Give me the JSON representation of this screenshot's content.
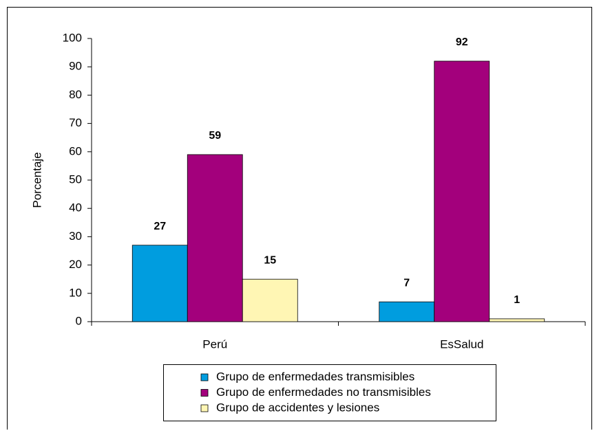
{
  "chart_data": {
    "type": "bar",
    "ylabel": "Porcentaje",
    "categories": [
      "Perú",
      "EsSalud"
    ],
    "series": [
      {
        "name": "Grupo de enfermedades transmisibles",
        "color": "#009ddf",
        "values": [
          27,
          7
        ]
      },
      {
        "name": "Grupo de enfermedades no transmisibles",
        "color": "#a3007c",
        "values": [
          59,
          92
        ]
      },
      {
        "name": "Grupo de accidentes y lesiones",
        "color": "#fff6b4",
        "values": [
          15,
          1
        ]
      }
    ],
    "ylim": [
      0,
      100
    ],
    "yticks": [
      0,
      10,
      20,
      30,
      40,
      50,
      60,
      70,
      80,
      90,
      100
    ],
    "grid": false,
    "legend": "bottom"
  }
}
